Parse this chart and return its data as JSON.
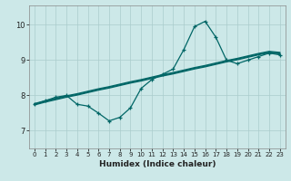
{
  "title": "",
  "xlabel": "Humidex (Indice chaleur)",
  "background_color": "#cce8e8",
  "grid_color": "#aacccc",
  "line_color": "#006666",
  "xlim": [
    -0.5,
    23.5
  ],
  "ylim": [
    6.5,
    10.55
  ],
  "yticks": [
    7,
    8,
    9,
    10
  ],
  "xticks": [
    0,
    1,
    2,
    3,
    4,
    5,
    6,
    7,
    8,
    9,
    10,
    11,
    12,
    13,
    14,
    15,
    16,
    17,
    18,
    19,
    20,
    21,
    22,
    23
  ],
  "spiky_line": [
    7.75,
    7.85,
    7.95,
    8.0,
    7.75,
    7.7,
    7.5,
    7.28,
    7.38,
    7.65,
    8.2,
    8.45,
    8.6,
    8.75,
    9.3,
    9.95,
    10.1,
    9.65,
    9.0,
    8.9,
    9.0,
    9.1,
    9.2,
    9.15
  ],
  "trend_lines": [
    [
      7.75,
      7.83,
      7.9,
      7.97,
      8.03,
      8.1,
      8.17,
      8.23,
      8.3,
      8.37,
      8.43,
      8.5,
      8.57,
      8.63,
      8.7,
      8.77,
      8.83,
      8.9,
      8.97,
      9.03,
      9.1,
      9.17,
      9.23,
      9.2
    ],
    [
      7.73,
      7.81,
      7.88,
      7.95,
      8.01,
      8.08,
      8.15,
      8.21,
      8.28,
      8.35,
      8.41,
      8.48,
      8.55,
      8.61,
      8.68,
      8.75,
      8.81,
      8.88,
      8.95,
      9.01,
      9.08,
      9.15,
      9.21,
      9.18
    ],
    [
      7.77,
      7.85,
      7.92,
      7.99,
      8.05,
      8.12,
      8.19,
      8.25,
      8.32,
      8.39,
      8.45,
      8.52,
      8.59,
      8.65,
      8.72,
      8.79,
      8.85,
      8.92,
      8.99,
      9.05,
      9.12,
      9.19,
      9.25,
      9.22
    ]
  ]
}
